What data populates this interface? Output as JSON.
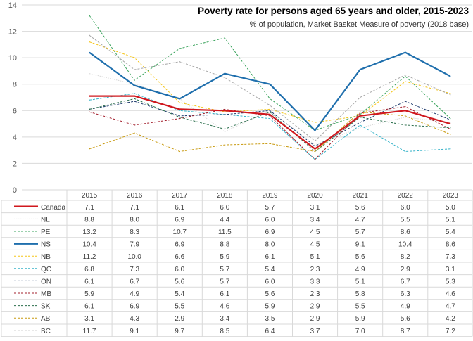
{
  "chart_data": {
    "type": "line",
    "title": "Poverty rate for persons aged 65 years and older, 2015-2023",
    "subtitle": "% of population, Market Basket Measure of poverty (2018 base)",
    "categories": [
      "2015",
      "2016",
      "2017",
      "2018",
      "2019",
      "2020",
      "2021",
      "2022",
      "2023"
    ],
    "ylim": [
      0,
      14
    ],
    "yticks": [
      0,
      2,
      4,
      6,
      8,
      10,
      12,
      14
    ],
    "grid": true,
    "legend": "data-table-below",
    "series": [
      {
        "name": "Canada",
        "color": "#d0181e",
        "style": "solid-thick",
        "values": [
          7.1,
          7.1,
          6.1,
          6.0,
          5.7,
          3.1,
          5.6,
          6.0,
          5.0
        ]
      },
      {
        "name": "NL",
        "color": "#d9d9d9",
        "style": "dotted",
        "values": [
          8.8,
          8.0,
          6.9,
          4.4,
          6.0,
          3.4,
          4.7,
          5.5,
          5.1
        ]
      },
      {
        "name": "PE",
        "color": "#3aa35c",
        "style": "dashed",
        "values": [
          13.2,
          8.3,
          10.7,
          11.5,
          6.9,
          4.5,
          5.7,
          8.6,
          5.4
        ]
      },
      {
        "name": "NS",
        "color": "#1f6fad",
        "style": "solid-thick",
        "values": [
          10.4,
          7.9,
          6.9,
          8.8,
          8.0,
          4.5,
          9.1,
          10.4,
          8.6
        ]
      },
      {
        "name": "NB",
        "color": "#f5c518",
        "style": "dashed",
        "values": [
          11.2,
          10.0,
          6.6,
          5.9,
          6.1,
          5.1,
          5.6,
          8.2,
          7.3
        ]
      },
      {
        "name": "QC",
        "color": "#36b3c9",
        "style": "dashed",
        "values": [
          6.8,
          7.3,
          6.0,
          5.7,
          5.4,
          2.3,
          4.9,
          2.9,
          3.1
        ]
      },
      {
        "name": "ON",
        "color": "#1f3b6e",
        "style": "dashed",
        "values": [
          6.1,
          6.7,
          5.6,
          5.7,
          6.0,
          3.3,
          5.1,
          6.7,
          5.3
        ]
      },
      {
        "name": "MB",
        "color": "#a3202e",
        "style": "dashed",
        "values": [
          5.9,
          4.9,
          5.4,
          6.1,
          5.6,
          2.3,
          5.8,
          6.3,
          4.6
        ]
      },
      {
        "name": "SK",
        "color": "#2b6e4c",
        "style": "dashed",
        "values": [
          6.1,
          6.9,
          5.5,
          4.6,
          5.9,
          2.9,
          5.5,
          4.9,
          4.7
        ]
      },
      {
        "name": "AB",
        "color": "#c89a10",
        "style": "dashed",
        "values": [
          3.1,
          4.3,
          2.9,
          3.4,
          3.5,
          2.9,
          5.9,
          5.6,
          4.2
        ]
      },
      {
        "name": "BC",
        "color": "#a6a6a6",
        "style": "dashed",
        "values": [
          11.7,
          9.1,
          9.7,
          8.5,
          6.4,
          3.7,
          7.0,
          8.7,
          7.2
        ]
      }
    ]
  }
}
